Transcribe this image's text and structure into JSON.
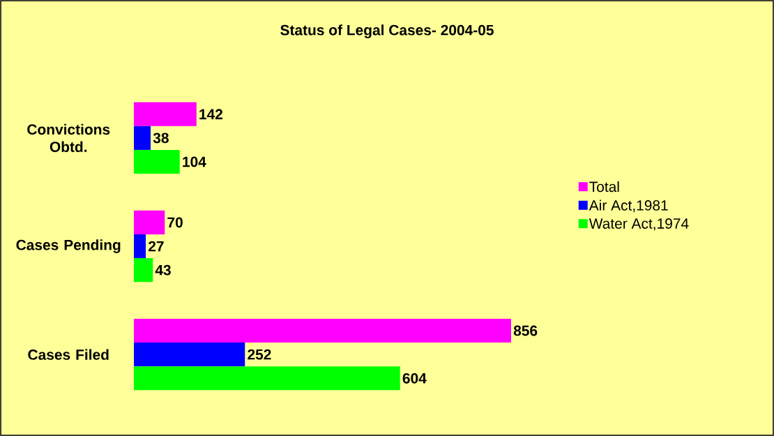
{
  "chart_data": {
    "type": "bar",
    "orientation": "horizontal",
    "title": "Status of Legal Cases- 2004-05",
    "categories": [
      "Convictions Obtd.",
      "Cases Pending",
      "Cases Filed"
    ],
    "series": [
      {
        "name": "Total",
        "color": "#ff00ff",
        "values": [
          142,
          70,
          856
        ]
      },
      {
        "name": "Air Act,1981",
        "color": "#0000ff",
        "values": [
          38,
          27,
          252
        ]
      },
      {
        "name": "Water Act,1974",
        "color": "#00ff00",
        "values": [
          104,
          43,
          604
        ]
      }
    ],
    "data_labels": true,
    "legend": "right"
  }
}
